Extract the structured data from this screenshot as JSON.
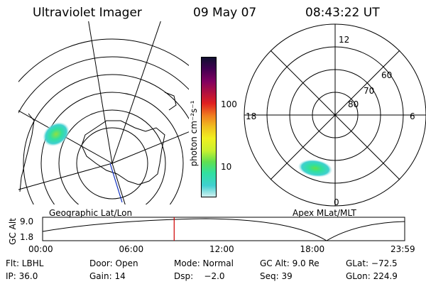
{
  "header": {
    "title": "Ultraviolet Imager",
    "date": "09 May 07",
    "time": "08:43:22 UT"
  },
  "left_panel": {
    "caption": "Geographic Lat/Lon"
  },
  "right_panel": {
    "caption": "Apex MLat/MLT",
    "mlt_labels": {
      "top": "12",
      "left": "18",
      "right": "6",
      "bottom": "0"
    },
    "lat_labels": [
      "60",
      "70",
      "80"
    ]
  },
  "colorbar": {
    "unit": "photon cm⁻²s⁻¹",
    "ticks": [
      "100",
      "10"
    ],
    "colors": [
      "#d0f0f0",
      "#40d0d0",
      "#30e0a0",
      "#60e050",
      "#c8f030",
      "#f0f020",
      "#f0c020",
      "#f08020",
      "#e02020",
      "#b01040",
      "#800060",
      "#400050",
      "#101030"
    ]
  },
  "altitude_strip": {
    "axis_title": "GC Alt",
    "y_ticks": [
      "9.0",
      "1.8"
    ],
    "x_ticks": [
      "00:00",
      "06:00",
      "12:00",
      "18:00",
      "23:59"
    ],
    "current_time_marker_hours": 8.72,
    "marker_color": "#d00000"
  },
  "info": {
    "row1": [
      "Flt: LBHL",
      "Door: Open",
      "Mode: Normal",
      "GC Alt: 9.0 Re",
      "GLat: −72.5"
    ],
    "row2": [
      "IP: 36.0",
      "Gain: 14",
      "Dsp:    −2.0",
      "Seq: 39",
      "GLon: 224.9"
    ]
  }
}
